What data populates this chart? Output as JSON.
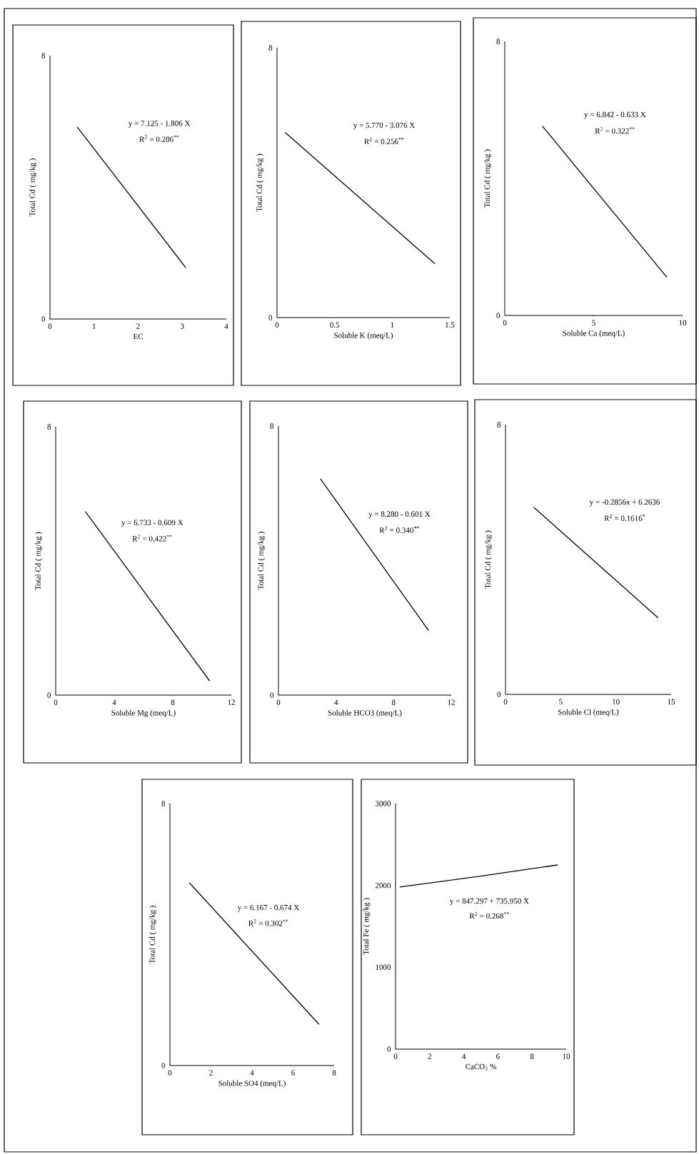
{
  "chart_data": [
    {
      "type": "line",
      "xlabel": "EC",
      "ylabel": "Total Cd ( mg/kg )",
      "x": [
        0.62,
        3.08
      ],
      "values": [
        5.83,
        1.56
      ],
      "color": "#000000",
      "xlim": [
        0,
        4
      ],
      "ylim": [
        0,
        8
      ],
      "xticks": [
        0,
        1,
        2,
        3,
        4
      ],
      "yticks": [
        0,
        8
      ],
      "annotations": [
        "y = 7.125 - 1.806 X",
        "R$^{2}$ = 0.286$^{**}$"
      ]
    },
    {
      "type": "line",
      "xlabel": "Soluble K (meq/L)",
      "ylabel": "Total Cd ( mg/kg )",
      "x": [
        0.07,
        1.37
      ],
      "values": [
        5.49,
        1.6
      ],
      "color": "#000000",
      "xlim": [
        0,
        1.5
      ],
      "ylim": [
        0,
        8
      ],
      "xticks": [
        0,
        0.5,
        1,
        1.5
      ],
      "yticks": [
        0,
        8
      ],
      "annotations": [
        "y = 5.770 - 3.076 X",
        "R$^{2}$ = 0.256$^{**}$"
      ]
    },
    {
      "type": "line",
      "xlabel": "Soluble Ca (meq/L)",
      "ylabel": "Total Cd ( mg/kg )",
      "x": [
        2.11,
        9.12
      ],
      "values": [
        5.53,
        1.11
      ],
      "color": "#000000",
      "xlim": [
        0,
        10
      ],
      "ylim": [
        0,
        8
      ],
      "xticks": [
        0,
        5,
        10
      ],
      "yticks": [
        0,
        8
      ],
      "annotations": [
        "y = 6.842 - 0.633 X",
        "R$^{2}$ = 0.322$^{**}$"
      ]
    },
    {
      "type": "line",
      "xlabel": "Soluble Mg (meq/L)",
      "ylabel": "Total Cd ( mg/kg )",
      "x": [
        2.03,
        10.52
      ],
      "values": [
        5.47,
        0.42
      ],
      "color": "#000000",
      "xlim": [
        0,
        12
      ],
      "ylim": [
        0,
        8
      ],
      "xticks": [
        0,
        4,
        8,
        12
      ],
      "yticks": [
        0,
        8
      ],
      "annotations": [
        "y = 6.733 - 0.609 X",
        "R$^{2}$ = 0.422$^{**}$"
      ]
    },
    {
      "type": "line",
      "xlabel": "Soluble HCO3 (meq/L)",
      "ylabel": "Total Cd ( mg/kg )",
      "x": [
        2.91,
        10.43
      ],
      "values": [
        6.43,
        1.92
      ],
      "color": "#000000",
      "xlim": [
        0,
        12
      ],
      "ylim": [
        0,
        8
      ],
      "xticks": [
        0,
        4,
        8,
        12
      ],
      "yticks": [
        0,
        8
      ],
      "annotations": [
        "y = 8.280 - 0.601 X",
        "R$^{2}$ = 0.340$^{**}$"
      ]
    },
    {
      "type": "line",
      "xlabel": "Soluble Cl (meq/L)",
      "ylabel": "Total Cd ( mg/kg )",
      "x": [
        2.55,
        13.82
      ],
      "values": [
        5.55,
        2.27
      ],
      "color": "#000000",
      "xlim": [
        0,
        15
      ],
      "ylim": [
        0,
        8
      ],
      "xticks": [
        0,
        5,
        10,
        15
      ],
      "yticks": [
        0,
        8
      ],
      "annotations": [
        "y = -0.2856x + 6.2636",
        "R$^{2}$ = 0.1616$^{*}$"
      ]
    },
    {
      "type": "line",
      "xlabel": "Soluble SO4 (meq/L)",
      "ylabel": "Total Cd ( mg/kg )",
      "x": [
        0.95,
        7.26
      ],
      "values": [
        5.58,
        1.26
      ],
      "color": "#000000",
      "xlim": [
        0,
        8
      ],
      "ylim": [
        0,
        8
      ],
      "xticks": [
        0,
        2,
        4,
        6,
        8
      ],
      "yticks": [
        0,
        8
      ],
      "annotations": [
        "y = 6.167 - 0.674 X",
        "R$^{2}$ = 0.302$^{**}$"
      ]
    },
    {
      "type": "line",
      "xlabel": "CaCO$_{3}$ %",
      "ylabel": "Total Fe ( mg/kg )",
      "x": [
        0.25,
        4.85,
        9.5
      ],
      "values": [
        1980,
        2110,
        2250
      ],
      "color": "#000000",
      "xlim": [
        0,
        10
      ],
      "ylim": [
        0,
        3000
      ],
      "xticks": [
        0,
        2,
        4,
        6,
        8,
        10
      ],
      "yticks": [
        0,
        1000,
        2000,
        3000
      ],
      "annotations": [
        "y = 847.297 + 735.950 X",
        "R$^{2}$ = 0.268$^{**}$"
      ]
    }
  ]
}
